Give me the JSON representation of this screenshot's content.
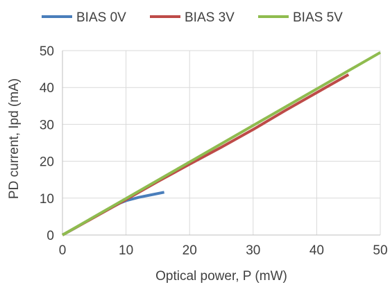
{
  "chart_data": {
    "type": "line",
    "title": "",
    "xlabel": "Optical power, P (mW)",
    "ylabel": "PD current, Ipd (mA)",
    "xlim": [
      0,
      50
    ],
    "ylim": [
      0,
      50
    ],
    "xticks": [
      0,
      10,
      20,
      30,
      40,
      50
    ],
    "yticks": [
      0,
      10,
      20,
      30,
      40,
      50
    ],
    "grid": true,
    "legend_position": "top",
    "series": [
      {
        "name": "BIAS 0V",
        "color": "#4a7ebb",
        "x": [
          0,
          2,
          4,
          6,
          8,
          9,
          10,
          12,
          14,
          16
        ],
        "y": [
          0,
          1.9,
          3.9,
          5.8,
          7.7,
          8.6,
          9.3,
          10.2,
          10.9,
          11.6
        ]
      },
      {
        "name": "BIAS 3V",
        "color": "#be4b48",
        "x": [
          0,
          5,
          10,
          15,
          20,
          25,
          30,
          35,
          40,
          45
        ],
        "y": [
          0,
          4.8,
          9.6,
          14.5,
          19.2,
          23.8,
          28.6,
          33.7,
          38.6,
          43.5
        ]
      },
      {
        "name": "BIAS 5V",
        "color": "#8fbc4f",
        "x": [
          0,
          10,
          20,
          30,
          40,
          50
        ],
        "y": [
          0,
          9.9,
          19.8,
          29.7,
          39.6,
          49.5
        ]
      }
    ]
  }
}
